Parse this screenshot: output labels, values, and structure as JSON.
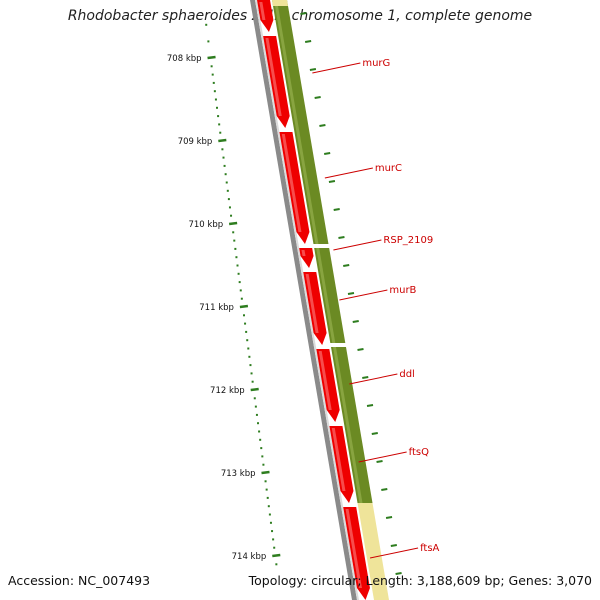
{
  "title": "Rhodobacter sphaeroides 2.4.1 chromosome 1, complete genome",
  "footer": {
    "accession": "Accession: NC_007493",
    "summary": "Topology: circular; Length: 3,188,609 bp; Genes: 3,070"
  },
  "colors": {
    "cds": "#ee0000",
    "gene": "#6b8a23",
    "other_feature": "#efe49a",
    "backbone": "#8a8a8a",
    "label": "#cc0000",
    "tick": "#2e7d1f"
  },
  "scale": {
    "unit": "kbp",
    "ticks": [
      {
        "kbp": 708,
        "label": "708 kbp"
      },
      {
        "kbp": 709,
        "label": "709 kbp"
      },
      {
        "kbp": 710,
        "label": "710 kbp"
      },
      {
        "kbp": 711,
        "label": "711 kbp"
      },
      {
        "kbp": 712,
        "label": "712 kbp"
      },
      {
        "kbp": 713,
        "label": "713 kbp"
      },
      {
        "kbp": 714,
        "label": "714 kbp"
      }
    ]
  },
  "genes": [
    {
      "name": "murG"
    },
    {
      "name": "murC"
    },
    {
      "name": "RSP_2109"
    },
    {
      "name": "murB"
    },
    {
      "name": "ddl"
    },
    {
      "name": "ftsQ"
    },
    {
      "name": "ftsA"
    }
  ]
}
